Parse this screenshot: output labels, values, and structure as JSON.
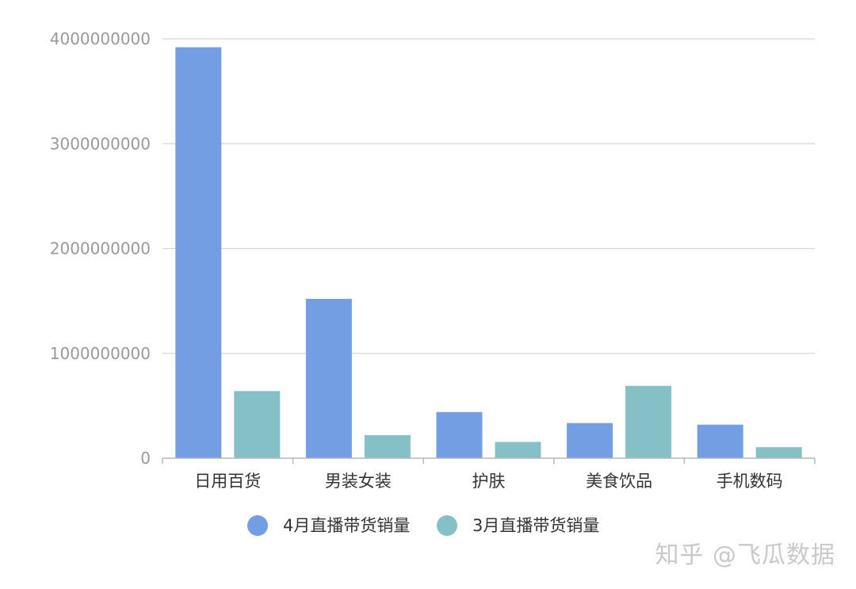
{
  "chart_data": {
    "type": "bar",
    "categories": [
      "日用百货",
      "男装女装",
      "护肤",
      "美食饮品",
      "手机数码"
    ],
    "series": [
      {
        "name": "4月直播带货销量",
        "color": "#739ee3",
        "values": [
          3920000000,
          1520000000,
          440000000,
          335000000,
          320000000
        ]
      },
      {
        "name": "3月直播带货销量",
        "color": "#86c0c7",
        "values": [
          640000000,
          220000000,
          155000000,
          690000000,
          105000000
        ]
      }
    ],
    "y_ticks": [
      "0",
      "1000000000",
      "2000000000",
      "3000000000",
      "4000000000"
    ],
    "ylim": [
      0,
      4000000000
    ],
    "grid": true,
    "legend_position": "bottom-center"
  },
  "watermark": "知乎 @飞瓜数据"
}
